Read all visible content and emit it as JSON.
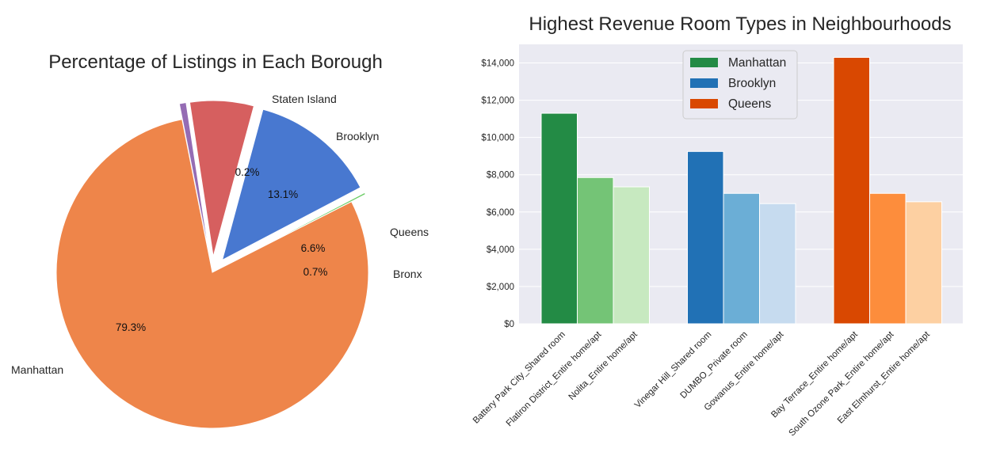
{
  "chart_data": [
    {
      "type": "pie",
      "title": "Percentage of Listings in Each Borough",
      "slices": [
        {
          "label": "Manhattan",
          "value": 79.3,
          "pct_label": "79.3%",
          "color": "#ee854a",
          "explode": false
        },
        {
          "label": "Staten Island",
          "value": 0.2,
          "pct_label": "0.2%",
          "color": "#6acc64",
          "explode": true
        },
        {
          "label": "Brooklyn",
          "value": 13.1,
          "pct_label": "13.1%",
          "color": "#4878d0",
          "explode": true
        },
        {
          "label": "Queens",
          "value": 6.6,
          "pct_label": "6.6%",
          "color": "#d65f5f",
          "explode": true
        },
        {
          "label": "Bronx",
          "value": 0.7,
          "pct_label": "0.7%",
          "color": "#956cb4",
          "explode": true
        }
      ]
    },
    {
      "type": "bar",
      "title": "Highest Revenue Room Types in Neighbourhoods",
      "ylim": [
        0,
        14000
      ],
      "yticks": [
        "$0",
        "$2,000",
        "$4,000",
        "$6,000",
        "$8,000",
        "$10,000",
        "$12,000",
        "$14,000"
      ],
      "legend_position": "top-center",
      "background": "#eaeaf2",
      "groups": [
        {
          "name": "Manhattan",
          "legend_color": "#238b45",
          "bars": [
            {
              "label": "Battery Park City_Shared room",
              "value": 11300,
              "color": "#238b45"
            },
            {
              "label": "Flatiron District_Entire home/apt",
              "value": 7850,
              "color": "#74c476"
            },
            {
              "label": "Nolita_Entire home/apt",
              "value": 7350,
              "color": "#c7e9c0"
            }
          ]
        },
        {
          "name": "Brooklyn",
          "legend_color": "#2171b5",
          "bars": [
            {
              "label": "Vinegar Hill_Shared room",
              "value": 9250,
              "color": "#2171b5"
            },
            {
              "label": "DUMBO_Private room",
              "value": 7000,
              "color": "#6baed6"
            },
            {
              "label": "Gowanus_Entire home/apt",
              "value": 6450,
              "color": "#c6dbef"
            }
          ]
        },
        {
          "name": "Queens",
          "legend_color": "#d94801",
          "bars": [
            {
              "label": "Bay Terrace_Entire home/apt",
              "value": 14300,
              "color": "#d94801"
            },
            {
              "label": "South Ozone Park_Entire home/apt",
              "value": 7000,
              "color": "#fd8d3c"
            },
            {
              "label": "East Elmhurst_Entire home/apt",
              "value": 6550,
              "color": "#fdd0a2"
            }
          ]
        }
      ]
    }
  ]
}
